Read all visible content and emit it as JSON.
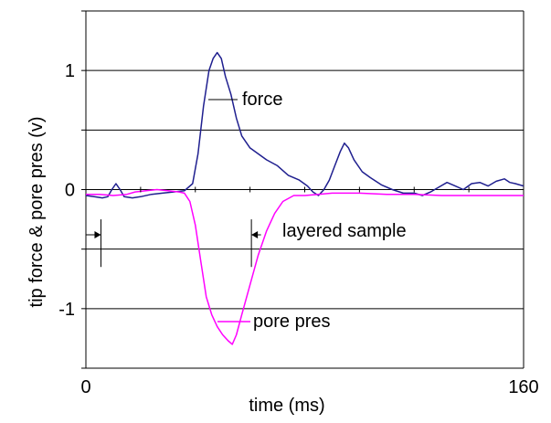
{
  "chart_data": {
    "type": "line",
    "xlabel": "time (ms)",
    "ylabel": "tip force & pore pres (v)",
    "xlim": [
      0,
      160
    ],
    "ylim": [
      -1.5,
      1.5
    ],
    "grid": true,
    "x_ticks": [
      {
        "value": 0,
        "label": "0"
      },
      {
        "value": 160,
        "label": "160"
      }
    ],
    "y_ticks": [
      {
        "value": 1,
        "label": "1"
      },
      {
        "value": 0,
        "label": "0"
      },
      {
        "value": -1,
        "label": "-1"
      }
    ],
    "gridlines": [
      1.5,
      1,
      0.5,
      0,
      -0.5,
      -1,
      -1.5
    ],
    "series": [
      {
        "name": "force",
        "color": "#1f1f8f",
        "points": [
          [
            0,
            -0.05
          ],
          [
            3,
            -0.06
          ],
          [
            6,
            -0.07
          ],
          [
            8,
            -0.06
          ],
          [
            9.5,
            0.0
          ],
          [
            11,
            0.05
          ],
          [
            12.5,
            0.0
          ],
          [
            14,
            -0.06
          ],
          [
            17,
            -0.07
          ],
          [
            20,
            -0.06
          ],
          [
            24,
            -0.04
          ],
          [
            28,
            -0.03
          ],
          [
            32,
            -0.02
          ],
          [
            36,
            -0.01
          ],
          [
            39,
            0.05
          ],
          [
            41,
            0.3
          ],
          [
            43,
            0.7
          ],
          [
            45,
            1.0
          ],
          [
            46.5,
            1.1
          ],
          [
            48,
            1.15
          ],
          [
            49.5,
            1.1
          ],
          [
            51,
            0.95
          ],
          [
            53,
            0.8
          ],
          [
            55,
            0.6
          ],
          [
            57,
            0.45
          ],
          [
            60,
            0.35
          ],
          [
            63,
            0.3
          ],
          [
            66,
            0.25
          ],
          [
            70,
            0.2
          ],
          [
            74,
            0.12
          ],
          [
            78,
            0.08
          ],
          [
            81,
            0.03
          ],
          [
            83,
            -0.02
          ],
          [
            85,
            -0.05
          ],
          [
            87,
            0.0
          ],
          [
            89,
            0.08
          ],
          [
            91,
            0.2
          ],
          [
            93,
            0.32
          ],
          [
            94.5,
            0.39
          ],
          [
            96,
            0.35
          ],
          [
            98,
            0.25
          ],
          [
            101,
            0.15
          ],
          [
            104,
            0.1
          ],
          [
            108,
            0.04
          ],
          [
            112,
            0.0
          ],
          [
            116,
            -0.03
          ],
          [
            120,
            -0.03
          ],
          [
            123,
            -0.05
          ],
          [
            126,
            -0.02
          ],
          [
            129,
            0.02
          ],
          [
            132,
            0.06
          ],
          [
            135,
            0.03
          ],
          [
            138,
            0.0
          ],
          [
            141,
            0.05
          ],
          [
            144,
            0.06
          ],
          [
            147,
            0.03
          ],
          [
            150,
            0.07
          ],
          [
            153,
            0.09
          ],
          [
            155,
            0.06
          ],
          [
            157,
            0.05
          ],
          [
            160,
            0.03
          ]
        ]
      },
      {
        "name": "pore pres",
        "color": "#ff00ff",
        "points": [
          [
            0,
            -0.04
          ],
          [
            5,
            -0.04
          ],
          [
            10,
            -0.05
          ],
          [
            15,
            -0.04
          ],
          [
            18,
            -0.02
          ],
          [
            22,
            -0.01
          ],
          [
            26,
            0.0
          ],
          [
            30,
            -0.01
          ],
          [
            34,
            -0.02
          ],
          [
            36,
            -0.03
          ],
          [
            38,
            -0.1
          ],
          [
            40,
            -0.3
          ],
          [
            42,
            -0.6
          ],
          [
            44,
            -0.9
          ],
          [
            46,
            -1.05
          ],
          [
            48,
            -1.15
          ],
          [
            50,
            -1.22
          ],
          [
            52,
            -1.27
          ],
          [
            53.5,
            -1.3
          ],
          [
            55,
            -1.22
          ],
          [
            57,
            -1.05
          ],
          [
            60,
            -0.8
          ],
          [
            63,
            -0.55
          ],
          [
            66,
            -0.35
          ],
          [
            69,
            -0.2
          ],
          [
            72,
            -0.1
          ],
          [
            76,
            -0.05
          ],
          [
            80,
            -0.05
          ],
          [
            85,
            -0.04
          ],
          [
            90,
            -0.03
          ],
          [
            100,
            -0.03
          ],
          [
            110,
            -0.04
          ],
          [
            120,
            -0.04
          ],
          [
            130,
            -0.05
          ],
          [
            140,
            -0.05
          ],
          [
            150,
            -0.05
          ],
          [
            160,
            -0.05
          ]
        ]
      }
    ],
    "annotations": [
      {
        "text": "force",
        "series": "force"
      },
      {
        "text": "pore pres",
        "series": "pore pres"
      },
      {
        "text": "layered sample",
        "type": "marker"
      }
    ],
    "markers": [
      {
        "x": 5.5,
        "y_top": -0.25,
        "y_bottom": -0.65,
        "arrow_from": 0,
        "arrow_to": 5.5
      },
      {
        "x": 60.5,
        "y_top": -0.25,
        "y_bottom": -0.65,
        "arrow_from": 64,
        "arrow_to": 60.5
      }
    ]
  }
}
